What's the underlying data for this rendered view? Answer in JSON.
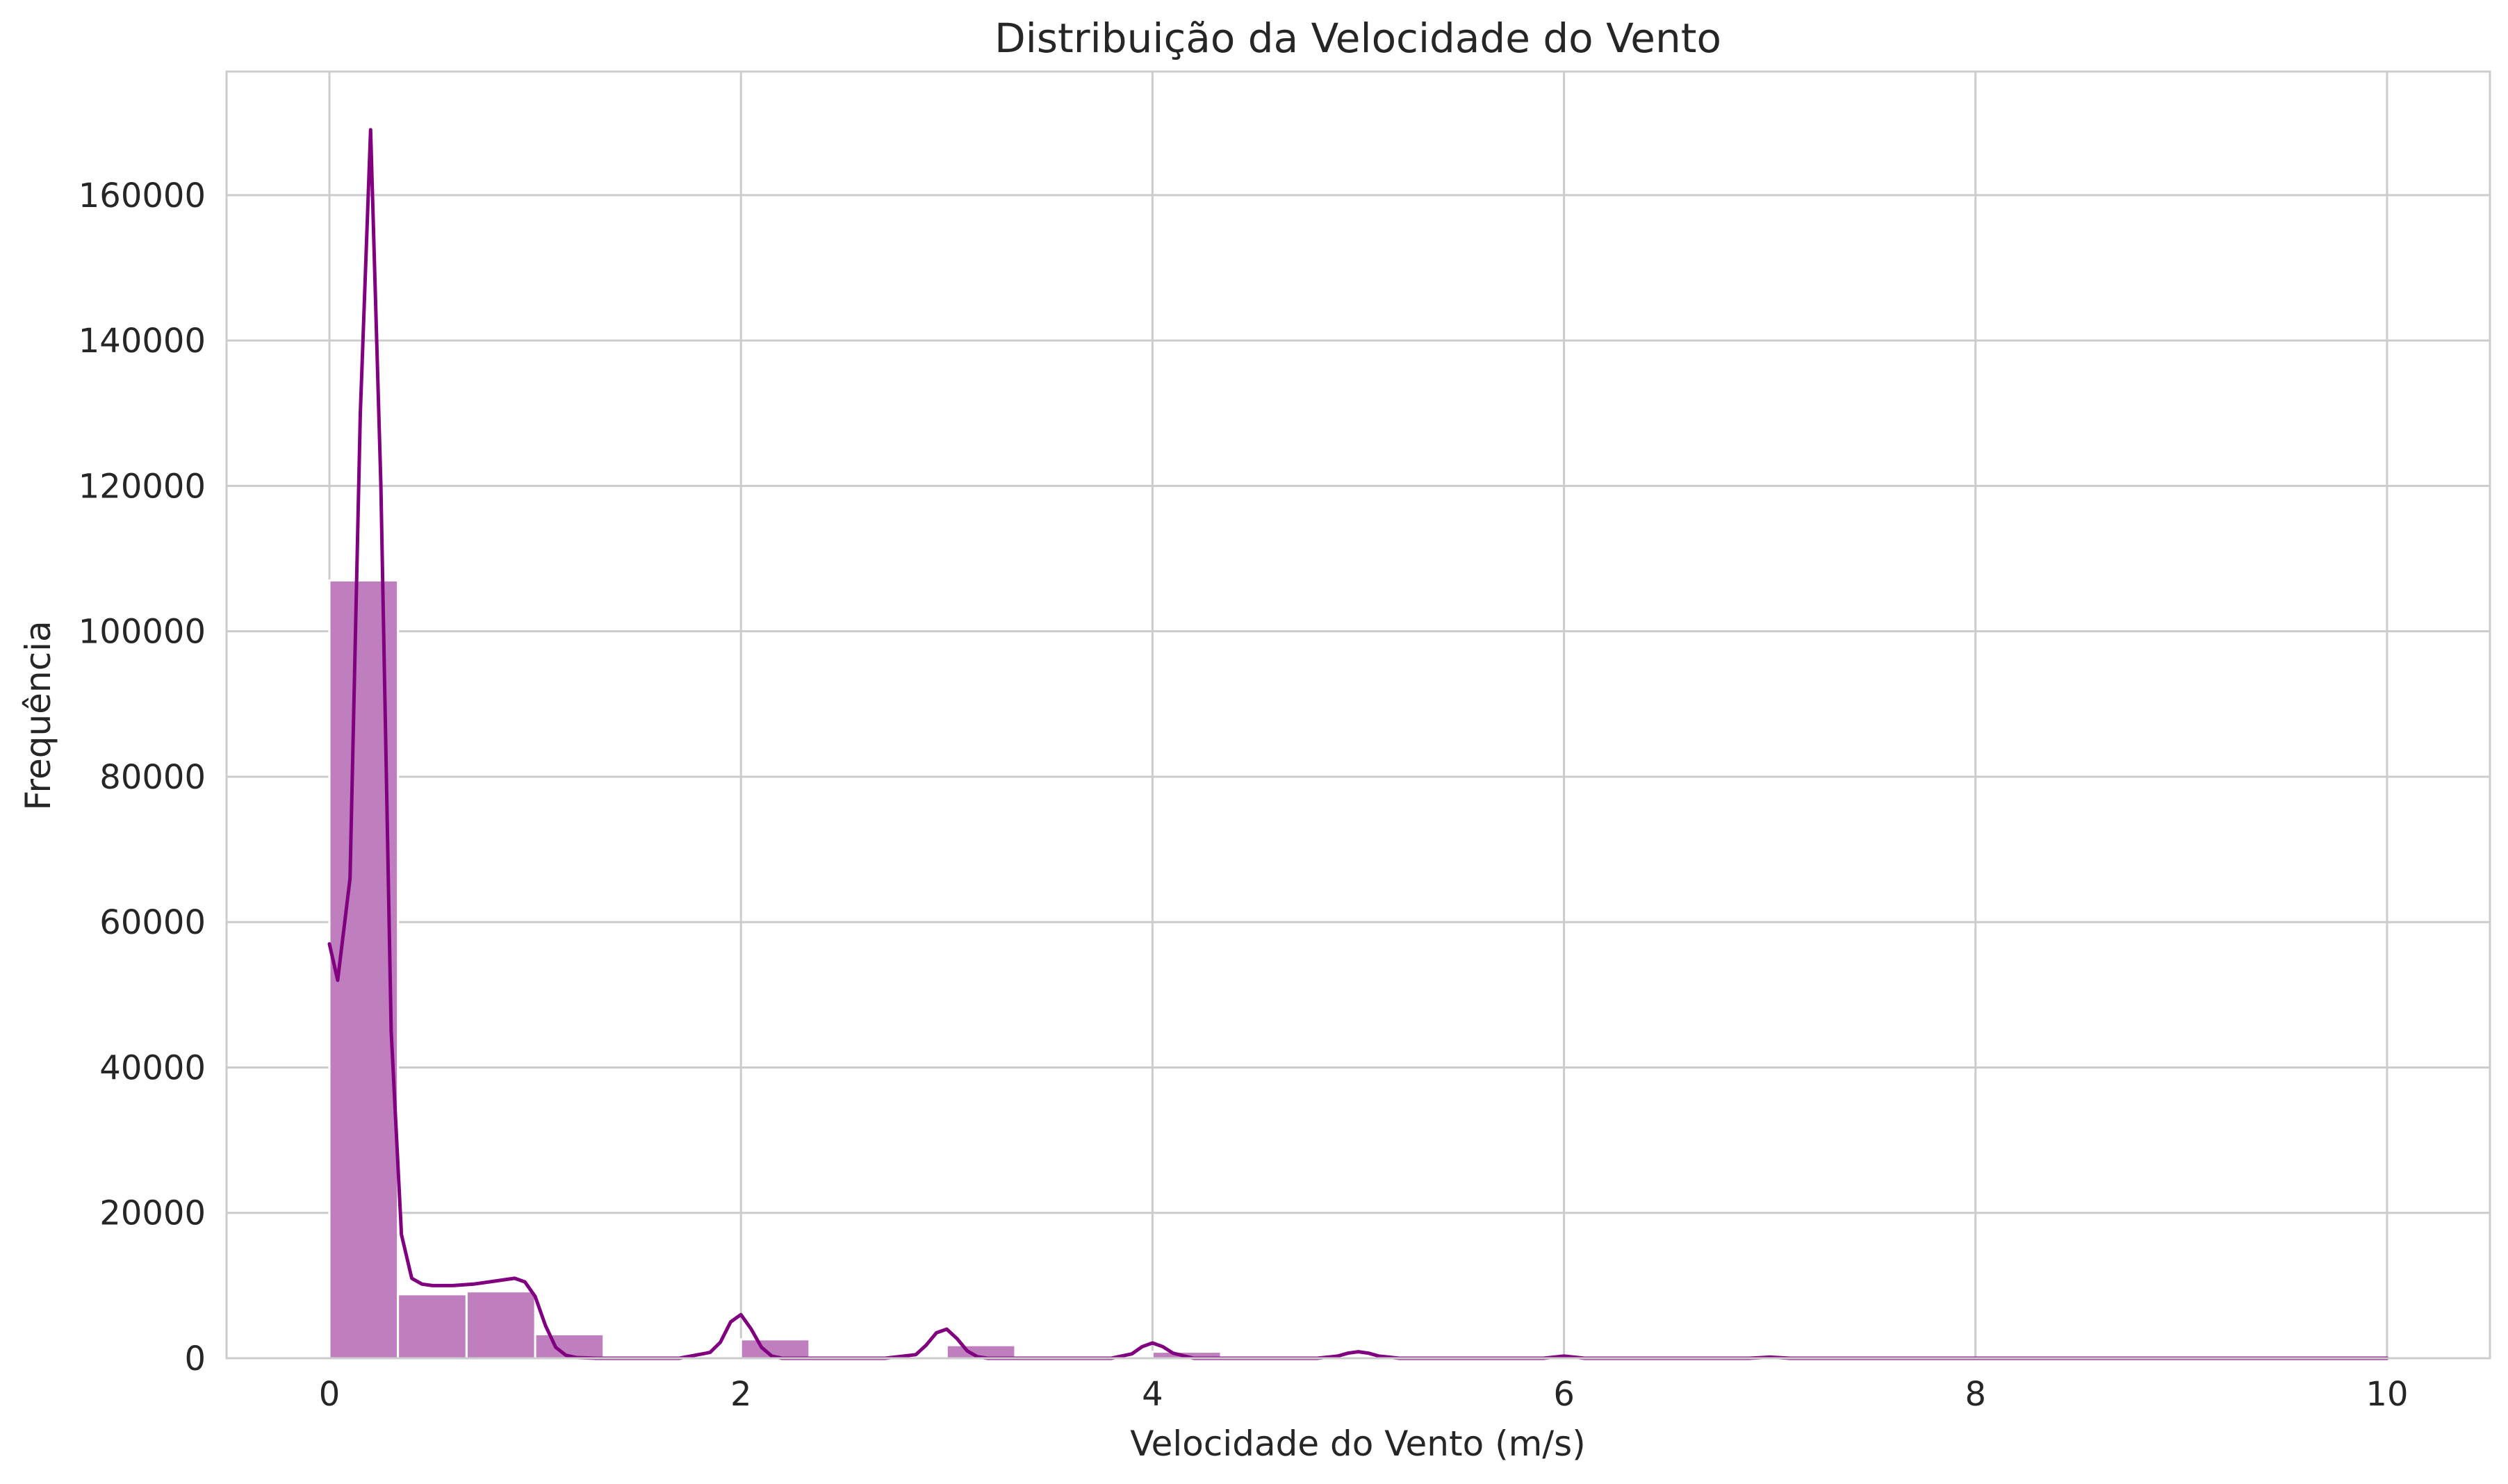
{
  "chart_data": {
    "type": "bar",
    "title": "Distribuição da Velocidade do Vento",
    "xlabel": "Velocidade do Vento (m/s)",
    "ylabel": "Frequência",
    "xlim": [
      -0.5,
      10.5
    ],
    "ylim": [
      0,
      177000
    ],
    "xticks": [
      0,
      2,
      4,
      6,
      8,
      10
    ],
    "yticks": [
      0,
      20000,
      40000,
      60000,
      80000,
      100000,
      120000,
      140000,
      160000
    ],
    "grid": true,
    "legend": "none",
    "bin_width": 0.333,
    "bins": [
      {
        "x0": 0.0,
        "value": 107000
      },
      {
        "x0": 0.333,
        "value": 8800
      },
      {
        "x0": 0.667,
        "value": 9200
      },
      {
        "x0": 1.0,
        "value": 3300
      },
      {
        "x0": 2.0,
        "value": 2600
      },
      {
        "x0": 3.0,
        "value": 1800
      },
      {
        "x0": 4.0,
        "value": 900
      },
      {
        "x0": 5.0,
        "value": 200
      }
    ],
    "kde": {
      "x": [
        0,
        0.04,
        0.1,
        0.15,
        0.2,
        0.25,
        0.3,
        0.35,
        0.4,
        0.45,
        0.5,
        0.6,
        0.7,
        0.8,
        0.9,
        0.95,
        1.0,
        1.05,
        1.1,
        1.15,
        1.2,
        1.3,
        1.5,
        1.7,
        1.85,
        1.9,
        1.95,
        2.0,
        2.05,
        2.1,
        2.15,
        2.2,
        2.4,
        2.7,
        2.85,
        2.9,
        2.95,
        3.0,
        3.05,
        3.1,
        3.15,
        3.2,
        3.5,
        3.8,
        3.9,
        3.95,
        4.0,
        4.05,
        4.1,
        4.2,
        4.5,
        4.8,
        4.9,
        4.95,
        5.0,
        5.05,
        5.1,
        5.2,
        5.5,
        5.9,
        6.0,
        6.1,
        6.5,
        6.9,
        7.0,
        7.1,
        7.5,
        8.0,
        9.0,
        10.0
      ],
      "y": [
        57000,
        52000,
        66000,
        130000,
        169000,
        120000,
        45000,
        17000,
        11000,
        10200,
        10000,
        10000,
        10200,
        10600,
        11000,
        10500,
        8500,
        4500,
        1500,
        400,
        100,
        0,
        0,
        0,
        800,
        2200,
        5000,
        6000,
        4000,
        1500,
        300,
        0,
        0,
        0,
        500,
        1800,
        3500,
        4000,
        2700,
        1000,
        200,
        0,
        0,
        0,
        600,
        1600,
        2100,
        1600,
        700,
        0,
        0,
        0,
        300,
        700,
        900,
        700,
        300,
        0,
        0,
        0,
        300,
        0,
        0,
        0,
        150,
        0,
        0,
        0,
        0,
        0
      ]
    },
    "bar_color": "#bf7fbf",
    "line_color": "#800080",
    "grid_color": "#cccccc",
    "text_color": "#262626"
  }
}
